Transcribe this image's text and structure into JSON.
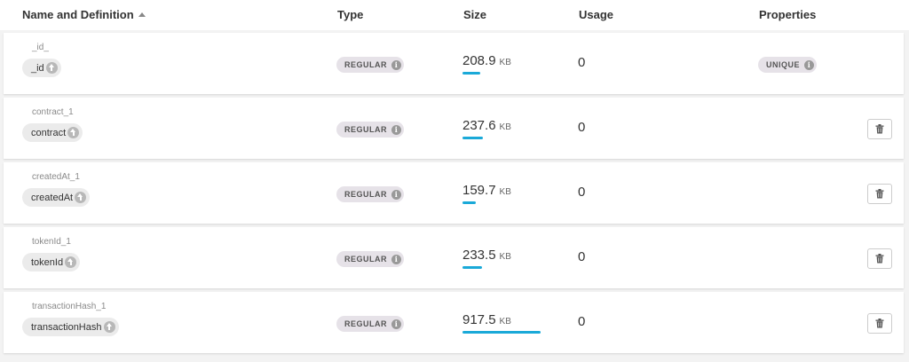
{
  "header": {
    "name_definition": "Name and Definition",
    "type": "Type",
    "size": "Size",
    "usage": "Usage",
    "properties": "Properties"
  },
  "indexes": [
    {
      "name": "_id_",
      "field": "_id",
      "type": "REGULAR",
      "size_value": "208.9",
      "size_unit": "KB",
      "size_fraction": 0.228,
      "usage": "0",
      "property": "UNIQUE",
      "deletable": false
    },
    {
      "name": "contract_1",
      "field": "contract",
      "type": "REGULAR",
      "size_value": "237.6",
      "size_unit": "KB",
      "size_fraction": 0.259,
      "usage": "0",
      "property": "",
      "deletable": true
    },
    {
      "name": "createdAt_1",
      "field": "createdAt",
      "type": "REGULAR",
      "size_value": "159.7",
      "size_unit": "KB",
      "size_fraction": 0.174,
      "usage": "0",
      "property": "",
      "deletable": true
    },
    {
      "name": "tokenId_1",
      "field": "tokenId",
      "type": "REGULAR",
      "size_value": "233.5",
      "size_unit": "KB",
      "size_fraction": 0.255,
      "usage": "0",
      "property": "",
      "deletable": true
    },
    {
      "name": "transactionHash_1",
      "field": "transactionHash",
      "type": "REGULAR",
      "size_value": "917.5",
      "size_unit": "KB",
      "size_fraction": 1.0,
      "usage": "0",
      "property": "",
      "deletable": true
    }
  ],
  "icons": {
    "sort": "sort-ascending-icon",
    "field_direction": "arrow-up-circle-icon",
    "info": "info-icon",
    "delete": "trash-icon"
  },
  "colors": {
    "size_bar": "#1aa9d8"
  }
}
